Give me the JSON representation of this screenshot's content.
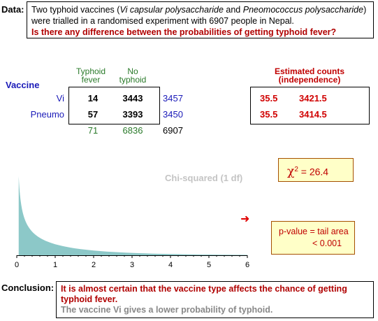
{
  "data_section": {
    "label": "Data:",
    "desc_1": "Two typhoid vaccines (",
    "vaccine_a": "Vi capsular polysaccharide",
    "desc_2": " and ",
    "vaccine_b": "Pneomococcus polysaccharide",
    "desc_3": ") were trialled in a randomised experiment with 6907 people in Nepal.",
    "question": "Is there any difference between the probabilities of getting typhoid fever?"
  },
  "table": {
    "row_header": "Vaccine",
    "col_headers": [
      {
        "line1": "Typhoid",
        "line2": "fever"
      },
      {
        "line1": "No",
        "line2": "typhoid"
      }
    ],
    "rows": [
      {
        "label": "Vi",
        "typhoid": "14",
        "no_typhoid": "3443",
        "total": "3457"
      },
      {
        "label": "Pneumo",
        "typhoid": "57",
        "no_typhoid": "3393",
        "total": "3450"
      }
    ],
    "col_totals": [
      "71",
      "6836"
    ],
    "grand_total": "6907"
  },
  "estimated": {
    "title_1": "Estimated counts",
    "title_2": "(independence)",
    "rows": [
      [
        "35.5",
        "3421.5"
      ],
      [
        "35.5",
        "3414.5"
      ]
    ]
  },
  "chi_squared": {
    "symbol": "χ",
    "sup": "2",
    "eq": " =  26.4"
  },
  "plot": {
    "title": "Chi-squared (1 df)",
    "fill_color": "#8cc8c8"
  },
  "chart_data": {
    "type": "area",
    "title": "Chi-squared (1 df)",
    "x": [
      0.05,
      0.1,
      0.2,
      0.3,
      0.5,
      0.75,
      1,
      1.5,
      2,
      3,
      4,
      5,
      6
    ],
    "y": [
      1.73,
      1.2,
      0.81,
      0.63,
      0.44,
      0.32,
      0.24,
      0.15,
      0.1,
      0.05,
      0.03,
      0.015,
      0.008
    ],
    "xticks": [
      "0",
      "1",
      "2",
      "3",
      "4",
      "5",
      "6"
    ],
    "xlim": [
      0,
      6
    ]
  },
  "p_value": {
    "line1": "p-value  =  tail area",
    "line2": "<  0.001",
    "arrow": "➜"
  },
  "conclusion": {
    "label": "Conclusion:",
    "main": "It is almost certain that the vaccine type affects the chance of getting typhoid fever.",
    "sub": "The vaccine Vi gives a lower probability of typhoid."
  }
}
